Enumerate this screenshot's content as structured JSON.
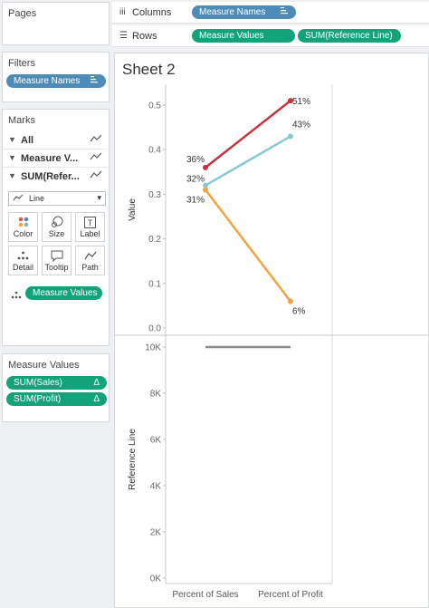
{
  "pages_card": {
    "title": "Pages"
  },
  "filters_card": {
    "title": "Filters",
    "pill": "Measure Names"
  },
  "marks_card": {
    "title": "Marks",
    "rows": [
      "All",
      "Measure V...",
      "SUM(Refer..."
    ],
    "mark_type": "Line",
    "buttons": [
      "Color",
      "Size",
      "Label",
      "Detail",
      "Tooltip",
      "Path"
    ],
    "pill": "Measure Values"
  },
  "measure_values_card": {
    "title": "Measure Values",
    "pills": [
      "SUM(Sales)",
      "SUM(Profit)"
    ],
    "pill_suffix": "Δ"
  },
  "shelves": {
    "columns": {
      "label": "Columns",
      "pills": [
        "Measure Names"
      ]
    },
    "rows": {
      "label": "Rows",
      "pills": [
        "Measure Values",
        "SUM(Reference Line)"
      ]
    }
  },
  "sheet": {
    "title": "Sheet 2"
  },
  "colors": {
    "red": "#c8333f",
    "teal": "#86cad0",
    "orange": "#f2a23e",
    "grey": "#8a8a8a",
    "pill_blue": "#4f8bb7",
    "pill_green": "#12a37a"
  },
  "chart_data": [
    {
      "type": "line",
      "ylabel": "Value",
      "ylim": [
        0,
        0.52
      ],
      "yticks": [
        "0.0",
        "0.1",
        "0.2",
        "0.3",
        "0.4",
        "0.5"
      ],
      "categories": [
        "Percent of Sales",
        "Percent of Profit"
      ],
      "series": [
        {
          "values": [
            0.36,
            0.51
          ],
          "labels": [
            "36%",
            "51%"
          ],
          "color": "red"
        },
        {
          "values": [
            0.32,
            0.43
          ],
          "labels": [
            "32%",
            "43%"
          ],
          "color": "teal"
        },
        {
          "values": [
            0.31,
            0.06
          ],
          "labels": [
            "31%",
            "6%"
          ],
          "color": "orange"
        }
      ]
    },
    {
      "type": "line",
      "ylabel": "Reference Line",
      "ylim": [
        0,
        10000
      ],
      "yticks": [
        "0K",
        "2K",
        "4K",
        "6K",
        "8K",
        "10K"
      ],
      "categories": [
        "Percent of Sales",
        "Percent of Profit"
      ],
      "series": [
        {
          "values": [
            10000,
            10000
          ],
          "color": "grey"
        }
      ]
    }
  ]
}
